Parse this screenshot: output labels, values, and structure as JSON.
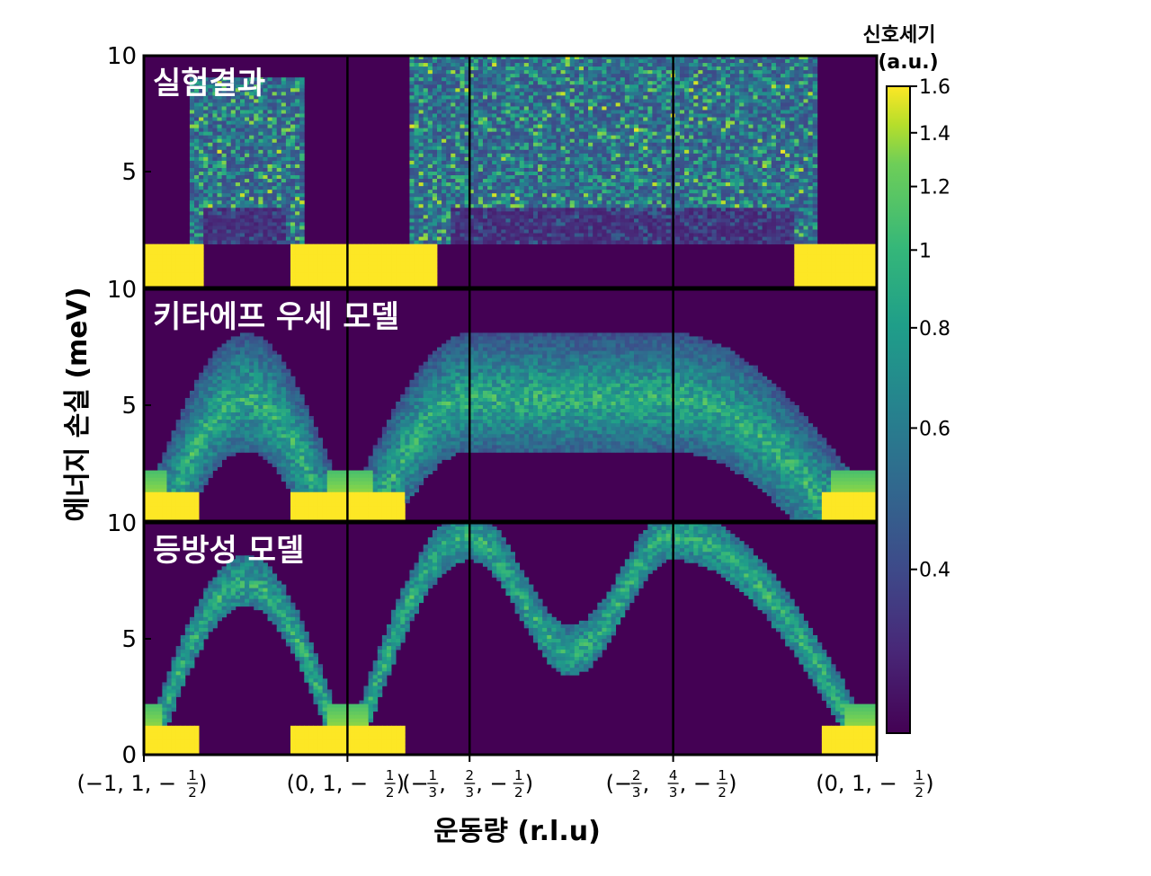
{
  "chart_data": {
    "type": "heatmap",
    "ylabel": "에너지 손실 (meV)",
    "xlabel": "운동량 (r.l.u)",
    "ylim": [
      0,
      10
    ],
    "y_ticks": [
      "0",
      "5",
      "10"
    ],
    "panels": [
      {
        "title": "실험결과",
        "kind": "experiment"
      },
      {
        "title": "키타에프 우세 모델",
        "kind": "kitaev"
      },
      {
        "title": "등방성 모델",
        "kind": "isotropic"
      }
    ],
    "q_points": [
      {
        "open": "(−1, 1, −",
        "num": "1",
        "den": "2",
        "close": ")"
      },
      {
        "open": "(0, 1, −",
        "num": "1",
        "den": "2",
        "close": ")"
      },
      {
        "open": "(−",
        "num": "1",
        "den": "3",
        "mid": ", ",
        "num2": "2",
        "den2": "3",
        "tail": ", −",
        "num3": "1",
        "den3": "2",
        "close": ")"
      },
      {
        "open": "(−",
        "num": "2",
        "den": "3",
        "mid": ", ",
        "num2": "4",
        "den2": "3",
        "tail": ", −",
        "num3": "1",
        "den3": "2",
        "close": ")"
      },
      {
        "open": "(0, 1, −",
        "num": "1",
        "den": "2",
        "close": ")"
      }
    ],
    "segment_boundaries_q": [
      0,
      1,
      1.6,
      2.6,
      3.6
    ],
    "colorbar": {
      "title_line1": "신호세기",
      "title_line2": "(a.u.)",
      "ticks": [
        "1.6",
        "1.4",
        "1.2",
        "1",
        "0.8",
        "0.6",
        "0.4"
      ],
      "tick_values": [
        1.6,
        1.4,
        1.2,
        1.0,
        0.8,
        0.6,
        0.4
      ],
      "range": [
        0.25,
        1.6
      ],
      "scale": "log",
      "colormap": "viridis"
    },
    "colors": {
      "low": "#440154",
      "mid": "#21918c",
      "high": "#fde725"
    }
  }
}
